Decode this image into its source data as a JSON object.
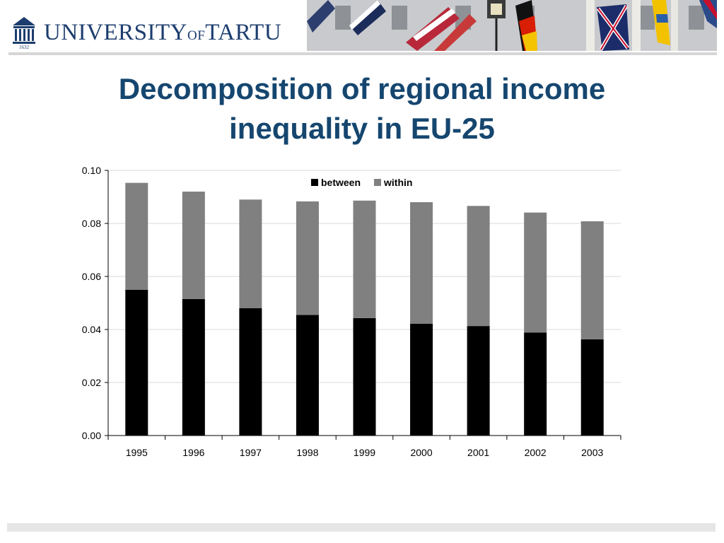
{
  "header": {
    "logo_prefix": "UNIVERSITY",
    "logo_of": "OF",
    "logo_suffix": "TARTU",
    "logo_year": "1632"
  },
  "slide": {
    "title_line1": "Decomposition of regional income",
    "title_line2": "inequality in EU-25"
  },
  "colors": {
    "title": "#15466f",
    "logo": "#1c3d6e",
    "between": "#000000",
    "within": "#808080",
    "gridline": "#d9d9d9",
    "axis": "#000000"
  },
  "chart_data": {
    "type": "bar",
    "stacked": true,
    "categories": [
      "1995",
      "1996",
      "1997",
      "1998",
      "1999",
      "2000",
      "2001",
      "2002",
      "2003"
    ],
    "series": [
      {
        "name": "between",
        "values": [
          0.055,
          0.0515,
          0.048,
          0.0455,
          0.0443,
          0.0422,
          0.0413,
          0.0388,
          0.0363
        ]
      },
      {
        "name": "within",
        "values": [
          0.0403,
          0.0405,
          0.041,
          0.0428,
          0.0443,
          0.0458,
          0.0453,
          0.0453,
          0.0445
        ]
      }
    ],
    "yticks": [
      "0.00",
      "0.02",
      "0.04",
      "0.06",
      "0.08",
      "0.10"
    ],
    "ylim": [
      0,
      0.1
    ],
    "grid": true,
    "legend": "top-center"
  }
}
